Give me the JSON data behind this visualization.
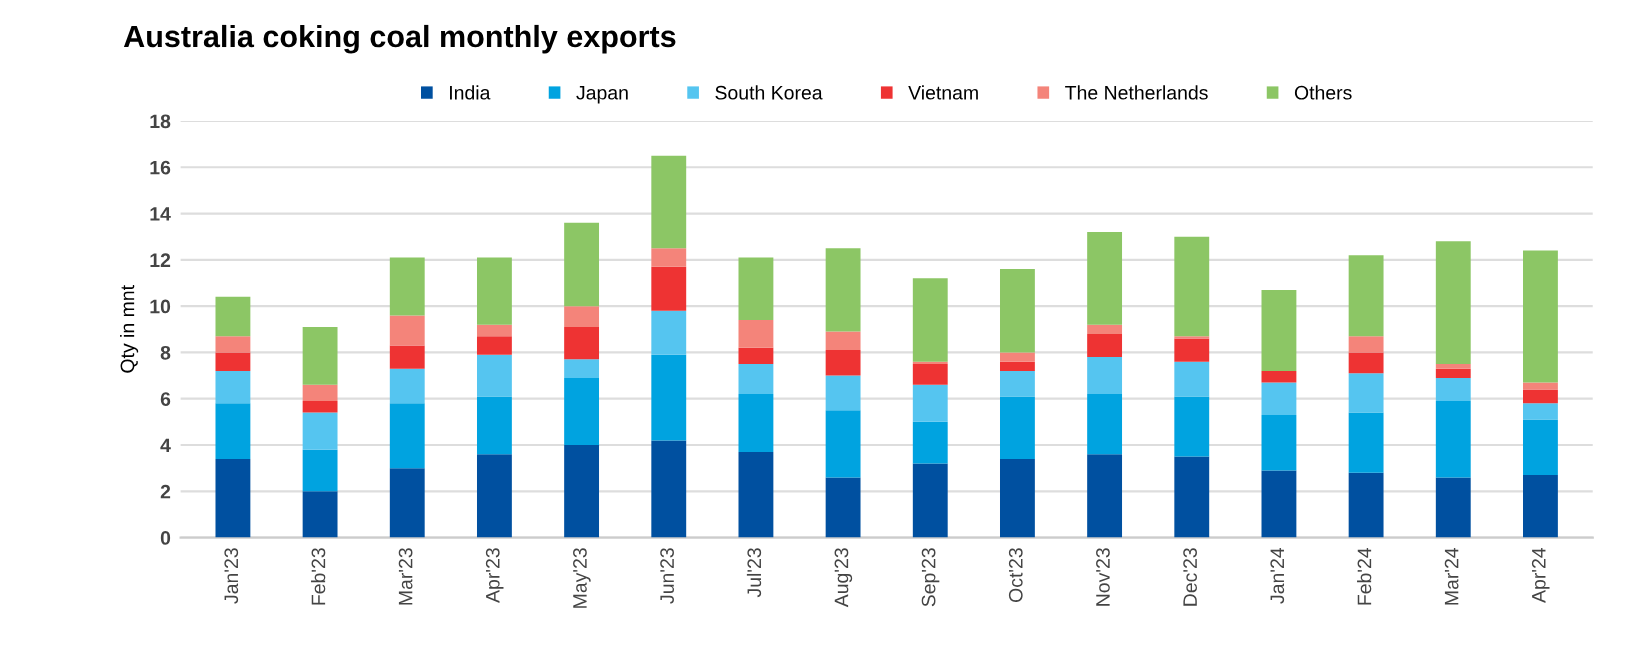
{
  "chart_data": {
    "type": "bar",
    "title": "Australia coking coal monthly exports",
    "ylabel": "Qty in mnt",
    "categories": [
      "Jan'23",
      "Feb'23",
      "Mar'23",
      "Apr'23",
      "May'23",
      "Jun'23",
      "Jul'23",
      "Aug'23",
      "Sep'23",
      "Oct'23",
      "Nov'23",
      "Dec'23",
      "Jan'24",
      "Feb'24",
      "Mar'24",
      "Apr'24"
    ],
    "stacked": true,
    "ylim": [
      0,
      18
    ],
    "yticks": [
      0,
      2,
      4,
      6,
      8,
      10,
      12,
      14,
      16,
      18
    ],
    "grid": "y",
    "legend": "top",
    "series": [
      {
        "name": "India",
        "color": "#0050a0",
        "values": [
          3.4,
          2.0,
          3.0,
          3.6,
          4.0,
          4.2,
          3.7,
          2.6,
          3.2,
          3.4,
          3.6,
          3.5,
          2.9,
          2.8,
          2.6,
          2.7
        ]
      },
      {
        "name": "Japan",
        "color": "#00a3e0",
        "values": [
          2.4,
          1.8,
          2.8,
          2.5,
          2.9,
          3.7,
          2.5,
          2.9,
          1.8,
          2.7,
          2.6,
          2.6,
          2.4,
          2.6,
          3.3,
          2.4
        ]
      },
      {
        "name": "South Korea",
        "color": "#55c5f0",
        "values": [
          1.4,
          1.6,
          1.5,
          1.8,
          0.8,
          1.9,
          1.3,
          1.5,
          1.6,
          1.1,
          1.6,
          1.5,
          1.4,
          1.7,
          1.0,
          0.7
        ]
      },
      {
        "name": "Vietnam",
        "color": "#ee3333",
        "values": [
          0.8,
          0.5,
          1.0,
          0.8,
          1.4,
          1.9,
          0.7,
          1.1,
          0.9,
          0.4,
          1.0,
          1.0,
          0.5,
          0.9,
          0.4,
          0.6
        ]
      },
      {
        "name": "The Netherlands",
        "color": "#f4847a",
        "values": [
          0.7,
          0.7,
          1.3,
          0.5,
          0.9,
          0.8,
          1.2,
          0.8,
          0.1,
          0.4,
          0.4,
          0.1,
          0.0,
          0.7,
          0.2,
          0.3
        ]
      },
      {
        "name": "Others",
        "color": "#8cc665",
        "values": [
          1.7,
          2.5,
          2.5,
          2.9,
          3.6,
          4.0,
          2.7,
          3.6,
          3.6,
          3.6,
          4.0,
          4.3,
          3.5,
          3.5,
          5.3,
          5.7
        ]
      }
    ]
  }
}
